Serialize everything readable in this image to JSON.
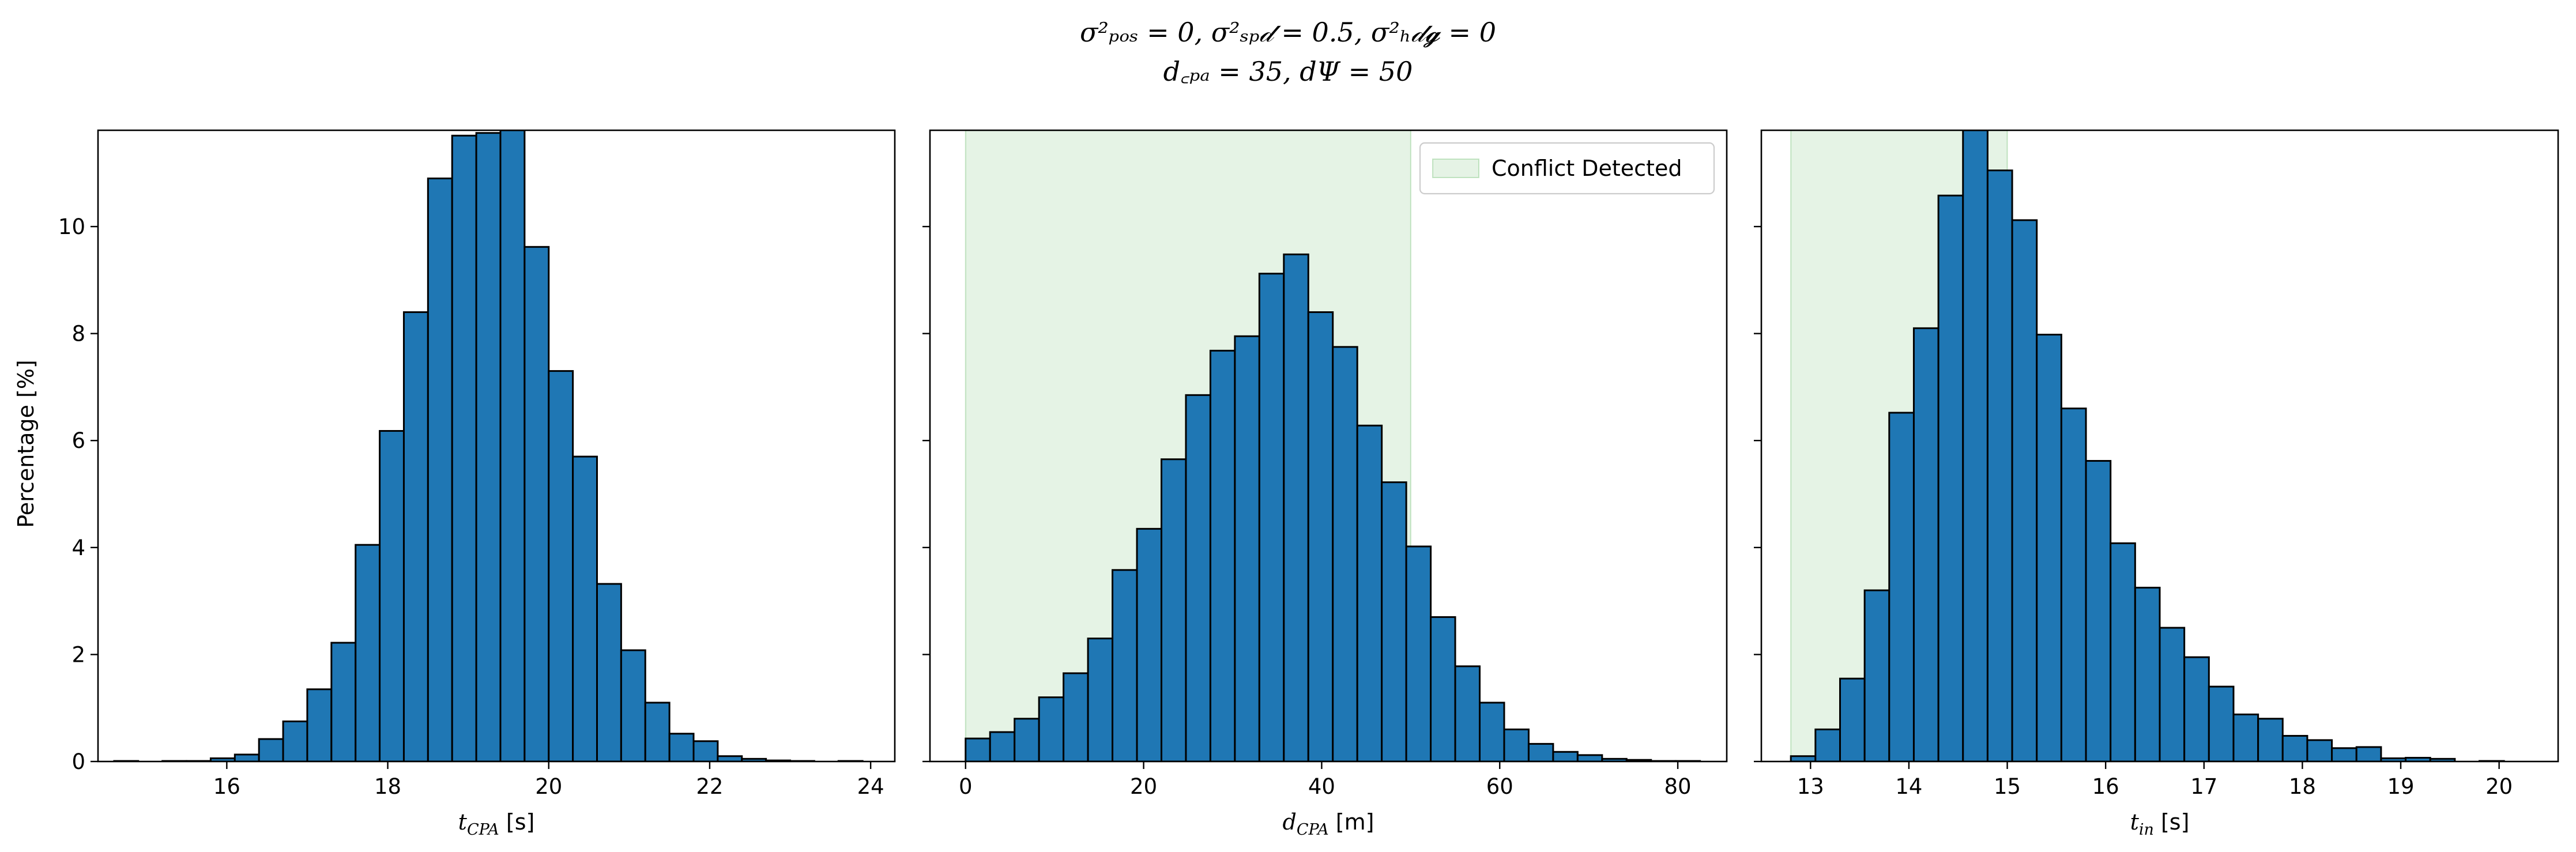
{
  "figure": {
    "title_lines": [
      "σ²ₚₒₛ = 0, σ²ₛₚ𝒹 = 0.5, σ²ₕ𝒹𝓰 = 0",
      "d꜀ₚₐ = 35, dΨ = 50"
    ],
    "shared_ylabel": "Percentage [%]",
    "colors": {
      "bar_fill": "#1f77b4",
      "bar_edge": "#000000",
      "conflict_fill": "#2ca02c"
    }
  },
  "chart_data": [
    {
      "type": "bar",
      "xlabel": "t_CPA [s]",
      "xlim": [
        14.4,
        24.3
      ],
      "ylim": [
        0,
        11.8
      ],
      "x_ticks": [
        16,
        18,
        20,
        22,
        24
      ],
      "y_ticks": [
        0,
        2,
        4,
        6,
        8,
        10
      ],
      "bin_width": 0.3,
      "bins_start": [
        14.6,
        14.9,
        15.2,
        15.5,
        15.8,
        16.1,
        16.4,
        16.7,
        17.0,
        17.3,
        17.6,
        17.9,
        18.2,
        18.5,
        18.8,
        19.1,
        19.4,
        19.7,
        20.0,
        20.3,
        20.6,
        20.9,
        21.2,
        21.5,
        21.8,
        22.1,
        22.4,
        22.7,
        23.0,
        23.3,
        23.6
      ],
      "values": [
        0.01,
        0.0,
        0.01,
        0.01,
        0.06,
        0.13,
        0.42,
        0.75,
        1.35,
        2.22,
        4.05,
        6.18,
        8.4,
        10.9,
        11.7,
        11.75,
        11.8,
        9.62,
        7.3,
        5.7,
        3.32,
        2.08,
        1.1,
        0.52,
        0.38,
        0.1,
        0.05,
        0.02,
        0.01,
        0.0,
        0.01
      ],
      "legend": null
    },
    {
      "type": "bar",
      "xlabel": "d_CPA [m]",
      "xlim": [
        -4,
        85.5
      ],
      "ylim": [
        0,
        11.8
      ],
      "x_ticks": [
        0,
        20,
        40,
        60,
        80
      ],
      "y_ticks": [
        0,
        2,
        4,
        6,
        8,
        10
      ],
      "bin_width": 2.75,
      "bins_start": [
        0.0,
        2.75,
        5.5,
        8.25,
        11.0,
        13.75,
        16.5,
        19.25,
        22.0,
        24.75,
        27.5,
        30.25,
        33.0,
        35.75,
        38.5,
        41.25,
        44.0,
        46.75,
        49.5,
        52.25,
        55.0,
        57.75,
        60.5,
        63.25,
        66.0,
        68.75,
        71.5,
        74.25,
        77.0,
        79.75
      ],
      "values": [
        0.43,
        0.55,
        0.8,
        1.2,
        1.65,
        2.3,
        3.58,
        4.35,
        5.65,
        6.85,
        7.68,
        7.95,
        9.12,
        9.48,
        8.4,
        7.75,
        6.28,
        5.22,
        4.02,
        2.7,
        1.78,
        1.1,
        0.6,
        0.33,
        0.18,
        0.12,
        0.05,
        0.03,
        0.01,
        0.01
      ],
      "shaded_region": {
        "x_start": 0,
        "x_end": 50,
        "label": "Conflict Detected"
      },
      "legend": {
        "entries": [
          "Conflict Detected"
        ],
        "position": "upper right"
      }
    },
    {
      "type": "bar",
      "xlabel": "t_in [s]",
      "xlim": [
        12.5,
        20.6
      ],
      "ylim": [
        0,
        11.8
      ],
      "x_ticks": [
        13,
        14,
        15,
        16,
        17,
        18,
        19,
        20
      ],
      "y_ticks": [
        0,
        2,
        4,
        6,
        8,
        10
      ],
      "bin_width": 0.25,
      "bins_start": [
        12.8,
        13.05,
        13.3,
        13.55,
        13.8,
        14.05,
        14.3,
        14.55,
        14.8,
        15.05,
        15.3,
        15.55,
        15.8,
        16.05,
        16.3,
        16.55,
        16.8,
        17.05,
        17.3,
        17.55,
        17.8,
        18.05,
        18.3,
        18.55,
        18.8,
        19.05,
        19.3,
        19.55,
        19.8,
        20.05
      ],
      "values": [
        0.1,
        0.6,
        1.55,
        3.2,
        6.52,
        8.1,
        10.58,
        11.8,
        11.05,
        10.12,
        7.98,
        6.6,
        5.62,
        4.08,
        3.25,
        2.5,
        1.95,
        1.4,
        0.88,
        0.8,
        0.48,
        0.4,
        0.25,
        0.27,
        0.06,
        0.07,
        0.05,
        0.0,
        0.01,
        0.0
      ],
      "shaded_region": {
        "x_start": 12.8,
        "x_end": 15.0
      },
      "legend": null
    }
  ]
}
